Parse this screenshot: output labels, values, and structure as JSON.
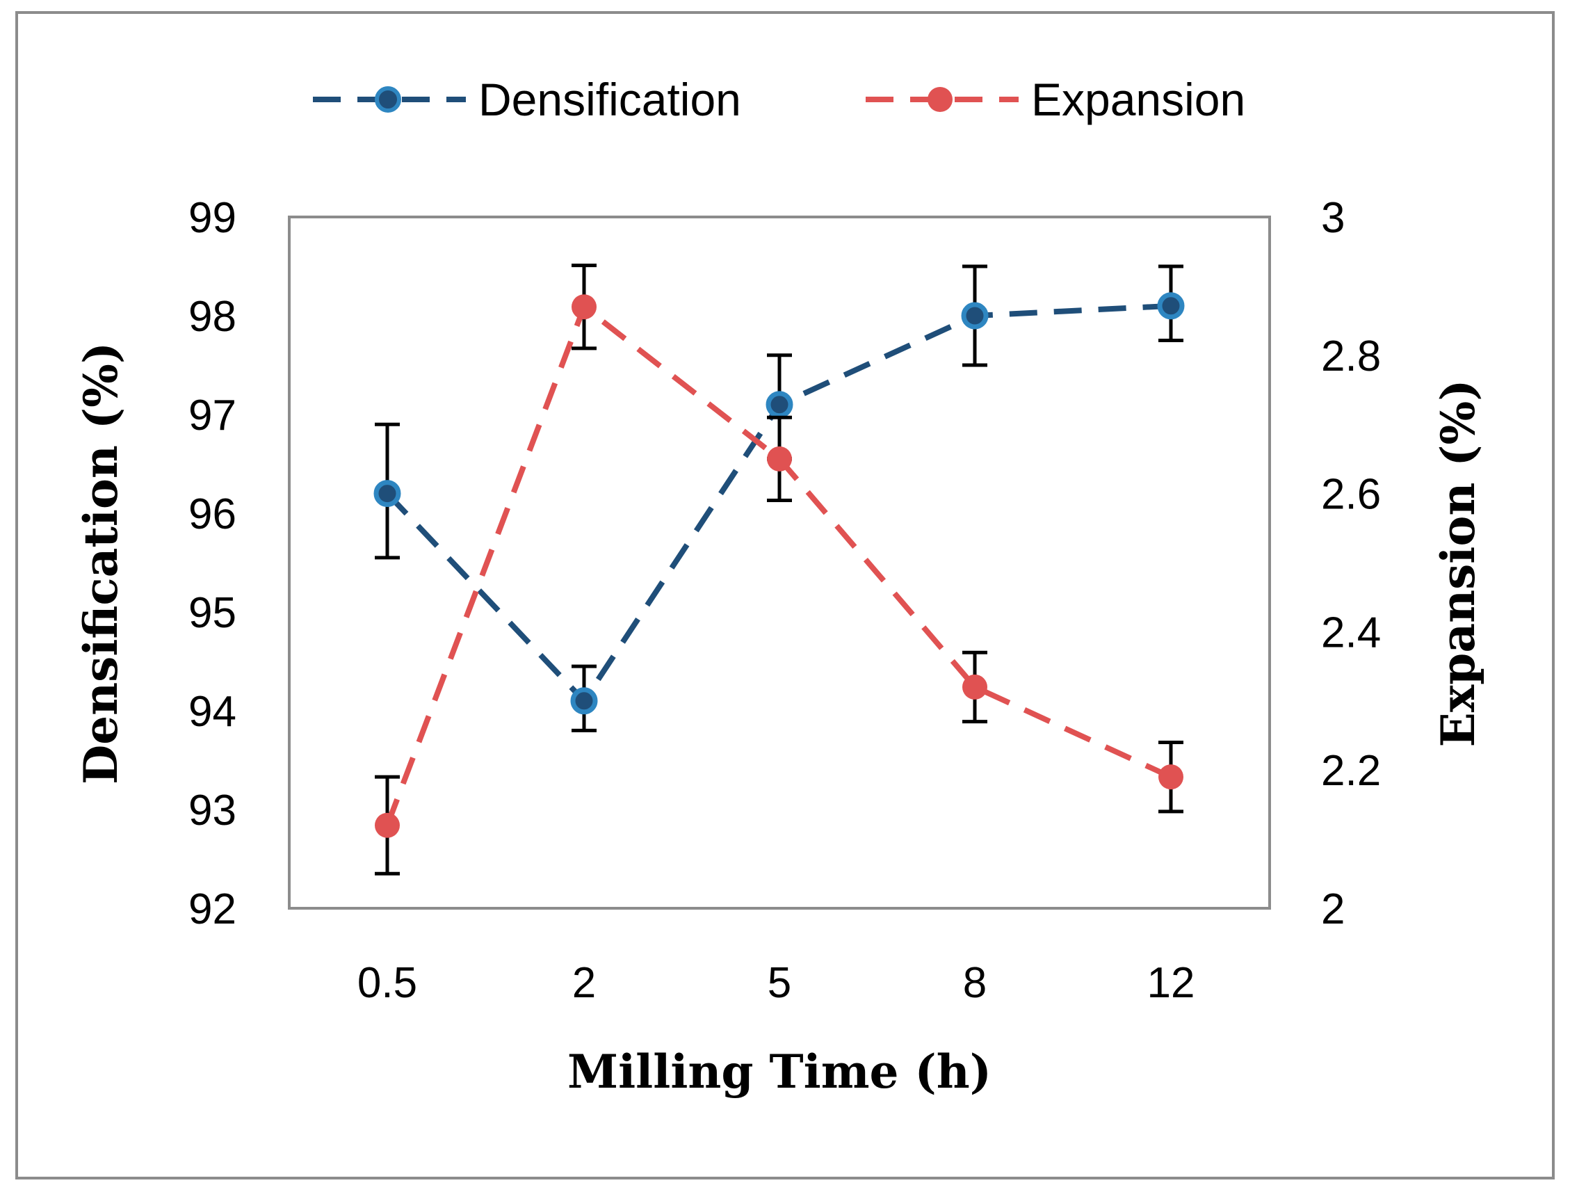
{
  "chart_data": {
    "type": "line",
    "xlabel": "Milling Time (h)",
    "ylabel_left": "Densification (%)",
    "ylabel_right": "Expansion (%)",
    "categories": [
      "0.5",
      "2",
      "5",
      "8",
      "12"
    ],
    "y_left": {
      "min": 92,
      "max": 99,
      "ticks": [
        "92",
        "93",
        "94",
        "95",
        "96",
        "97",
        "98",
        "99"
      ]
    },
    "y_right": {
      "min": 2,
      "max": 3,
      "ticks": [
        "2",
        "2.2",
        "2.4",
        "2.6",
        "2.8",
        "3"
      ]
    },
    "legend_position": "top-center",
    "series": [
      {
        "name": "Densification",
        "axis": "left",
        "color": "#1f4e79",
        "marker_color": "#2e86c1",
        "values": [
          96.2,
          94.1,
          97.1,
          98.0,
          98.1
        ],
        "err_low": [
          95.55,
          93.8,
          96.55,
          97.5,
          97.75
        ],
        "err_high": [
          96.9,
          94.45,
          97.6,
          98.5,
          98.5
        ]
      },
      {
        "name": "Expansion",
        "axis": "right",
        "color": "#e05252",
        "marker_color": "#e05252",
        "values": [
          2.12,
          2.87,
          2.65,
          2.32,
          2.19
        ],
        "err_low": [
          2.05,
          2.81,
          2.59,
          2.27,
          2.14
        ],
        "err_high": [
          2.19,
          2.93,
          2.71,
          2.37,
          2.24
        ]
      }
    ]
  }
}
